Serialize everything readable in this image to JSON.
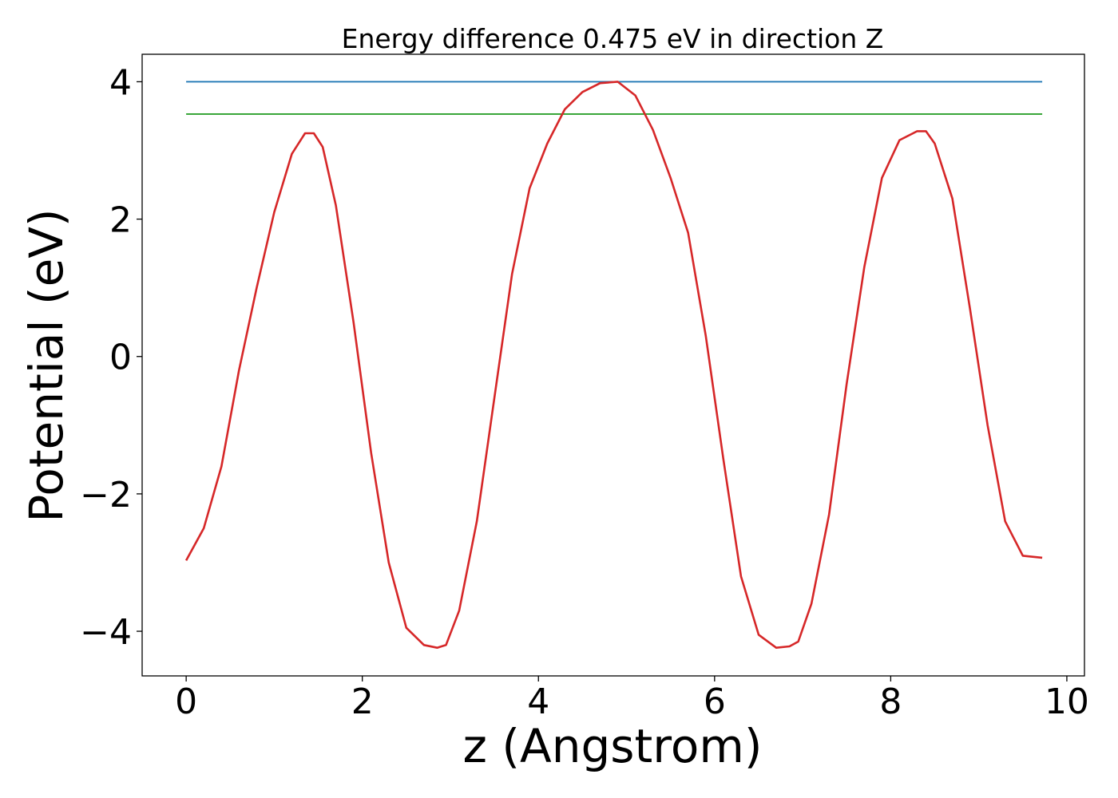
{
  "chart_data": {
    "type": "line",
    "title": "Energy difference 0.475 eV in direction Z",
    "xlabel": "z (Angstrom)",
    "ylabel": "Potential (eV)",
    "xlim": [
      -0.5,
      10.2
    ],
    "ylim": [
      -4.65,
      4.4
    ],
    "xticks": [
      0,
      2,
      4,
      6,
      8,
      10
    ],
    "xtick_labels": [
      "0",
      "2",
      "4",
      "6",
      "8",
      "10"
    ],
    "yticks": [
      -4,
      -2,
      0,
      2,
      4
    ],
    "ytick_labels": [
      "−4",
      "−2",
      "0",
      "2",
      "4"
    ],
    "grid": false,
    "series": [
      {
        "color": "#1f77b4",
        "x": [
          0,
          9.72
        ],
        "y": [
          4.0,
          4.0
        ]
      },
      {
        "color": "#2ca02c",
        "x": [
          0,
          9.72
        ],
        "y": [
          3.53,
          3.53
        ]
      },
      {
        "color": "#d62728",
        "x": [
          0.0,
          0.2,
          0.4,
          0.6,
          0.8,
          1.0,
          1.2,
          1.35,
          1.45,
          1.55,
          1.7,
          1.9,
          2.1,
          2.3,
          2.5,
          2.7,
          2.85,
          2.95,
          3.1,
          3.3,
          3.5,
          3.7,
          3.9,
          4.1,
          4.3,
          4.5,
          4.7,
          4.9,
          5.1,
          5.3,
          5.5,
          5.7,
          5.9,
          6.1,
          6.3,
          6.5,
          6.7,
          6.85,
          6.95,
          7.1,
          7.3,
          7.5,
          7.7,
          7.9,
          8.1,
          8.3,
          8.4,
          8.5,
          8.7,
          8.9,
          9.1,
          9.3,
          9.5,
          9.72
        ],
        "y": [
          -2.97,
          -2.5,
          -1.6,
          -0.2,
          1.0,
          2.1,
          2.95,
          3.25,
          3.25,
          3.05,
          2.2,
          0.5,
          -1.4,
          -3.0,
          -3.95,
          -4.2,
          -4.24,
          -4.2,
          -3.7,
          -2.4,
          -0.6,
          1.2,
          2.45,
          3.1,
          3.6,
          3.85,
          3.98,
          4.0,
          3.8,
          3.3,
          2.6,
          1.8,
          0.3,
          -1.5,
          -3.2,
          -4.05,
          -4.24,
          -4.22,
          -4.15,
          -3.6,
          -2.3,
          -0.4,
          1.3,
          2.6,
          3.15,
          3.28,
          3.28,
          3.1,
          2.3,
          0.7,
          -1.0,
          -2.4,
          -2.9,
          -2.93
        ]
      }
    ]
  }
}
